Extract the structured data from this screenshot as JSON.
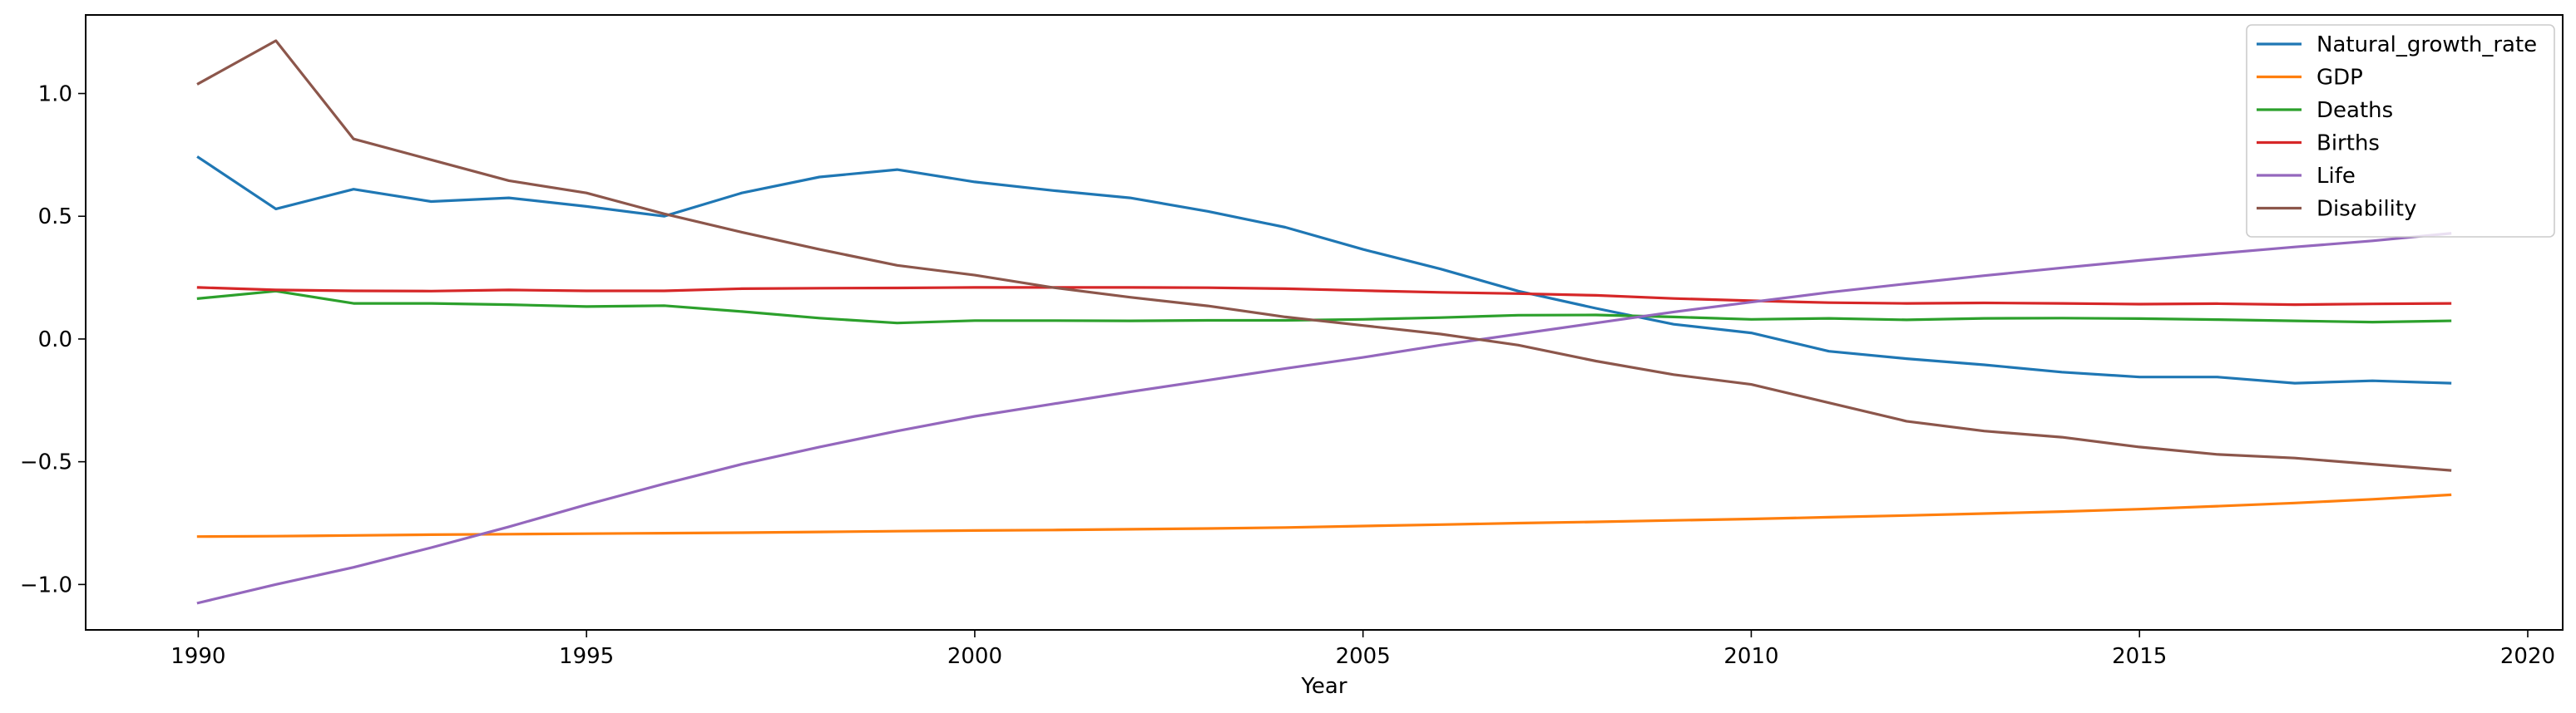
{
  "chart_data": {
    "type": "line",
    "title": "",
    "xlabel": "Year",
    "ylabel": "",
    "xlim": [
      1988.55,
      2020.45
    ],
    "ylim": [
      -1.185,
      1.32
    ],
    "x_ticks": [
      1990,
      1995,
      2000,
      2005,
      2010,
      2015,
      2020
    ],
    "y_ticks": [
      -1.0,
      -0.5,
      0.0,
      0.5,
      1.0
    ],
    "x_tick_labels": [
      "1990",
      "1995",
      "2000",
      "2005",
      "2010",
      "2015",
      "2020"
    ],
    "y_tick_labels": [
      "−1.0",
      "−0.5",
      "0.0",
      "0.5",
      "1.0"
    ],
    "grid": false,
    "legend_position": "upper right",
    "x": [
      1990,
      1991,
      1992,
      1993,
      1994,
      1995,
      1996,
      1997,
      1998,
      1999,
      2000,
      2001,
      2002,
      2003,
      2004,
      2005,
      2006,
      2007,
      2008,
      2009,
      2010,
      2011,
      2012,
      2013,
      2014,
      2015,
      2016,
      2017,
      2018,
      2019
    ],
    "series": [
      {
        "name": "Natural_growth_rate",
        "color": "#1f77b4",
        "values": [
          0.74,
          0.53,
          0.61,
          0.56,
          0.575,
          0.54,
          0.5,
          0.595,
          0.66,
          0.69,
          0.64,
          0.605,
          0.575,
          0.52,
          0.455,
          0.365,
          0.285,
          0.195,
          0.125,
          0.06,
          0.025,
          -0.05,
          -0.08,
          -0.105,
          -0.135,
          -0.155,
          -0.155,
          -0.18,
          -0.17,
          -0.18
        ]
      },
      {
        "name": "GDP",
        "color": "#ff7f0e",
        "values": [
          -0.805,
          -0.803,
          -0.8,
          -0.797,
          -0.795,
          -0.793,
          -0.791,
          -0.789,
          -0.786,
          -0.783,
          -0.78,
          -0.778,
          -0.775,
          -0.772,
          -0.768,
          -0.762,
          -0.756,
          -0.75,
          -0.745,
          -0.739,
          -0.733,
          -0.726,
          -0.719,
          -0.711,
          -0.703,
          -0.693,
          -0.681,
          -0.668,
          -0.653,
          -0.635
        ]
      },
      {
        "name": "Deaths",
        "color": "#2ca02c",
        "values": [
          0.165,
          0.195,
          0.145,
          0.145,
          0.14,
          0.132,
          0.136,
          0.112,
          0.085,
          0.065,
          0.075,
          0.075,
          0.074,
          0.076,
          0.076,
          0.08,
          0.087,
          0.097,
          0.098,
          0.09,
          0.08,
          0.084,
          0.078,
          0.084,
          0.085,
          0.083,
          0.079,
          0.074,
          0.069,
          0.074
        ]
      },
      {
        "name": "Births",
        "color": "#d62728",
        "values": [
          0.21,
          0.2,
          0.196,
          0.195,
          0.2,
          0.196,
          0.196,
          0.205,
          0.207,
          0.208,
          0.21,
          0.21,
          0.21,
          0.209,
          0.205,
          0.197,
          0.19,
          0.185,
          0.178,
          0.165,
          0.156,
          0.148,
          0.145,
          0.147,
          0.145,
          0.142,
          0.144,
          0.14,
          0.143,
          0.145
        ]
      },
      {
        "name": "Life",
        "color": "#9467bd",
        "values": [
          -1.075,
          -1.0,
          -0.93,
          -0.85,
          -0.765,
          -0.675,
          -0.59,
          -0.51,
          -0.44,
          -0.375,
          -0.315,
          -0.265,
          -0.215,
          -0.168,
          -0.12,
          -0.075,
          -0.025,
          0.02,
          0.065,
          0.11,
          0.15,
          0.19,
          0.225,
          0.258,
          0.29,
          0.32,
          0.348,
          0.375,
          0.4,
          0.43
        ]
      },
      {
        "name": "Disability",
        "color": "#8c564b",
        "values": [
          1.04,
          1.215,
          0.815,
          0.73,
          0.645,
          0.595,
          0.51,
          0.435,
          0.365,
          0.3,
          0.26,
          0.21,
          0.17,
          0.135,
          0.09,
          0.055,
          0.02,
          -0.025,
          -0.09,
          -0.145,
          -0.185,
          -0.26,
          -0.335,
          -0.375,
          -0.4,
          -0.44,
          -0.47,
          -0.485,
          -0.51,
          -0.535
        ]
      }
    ]
  }
}
